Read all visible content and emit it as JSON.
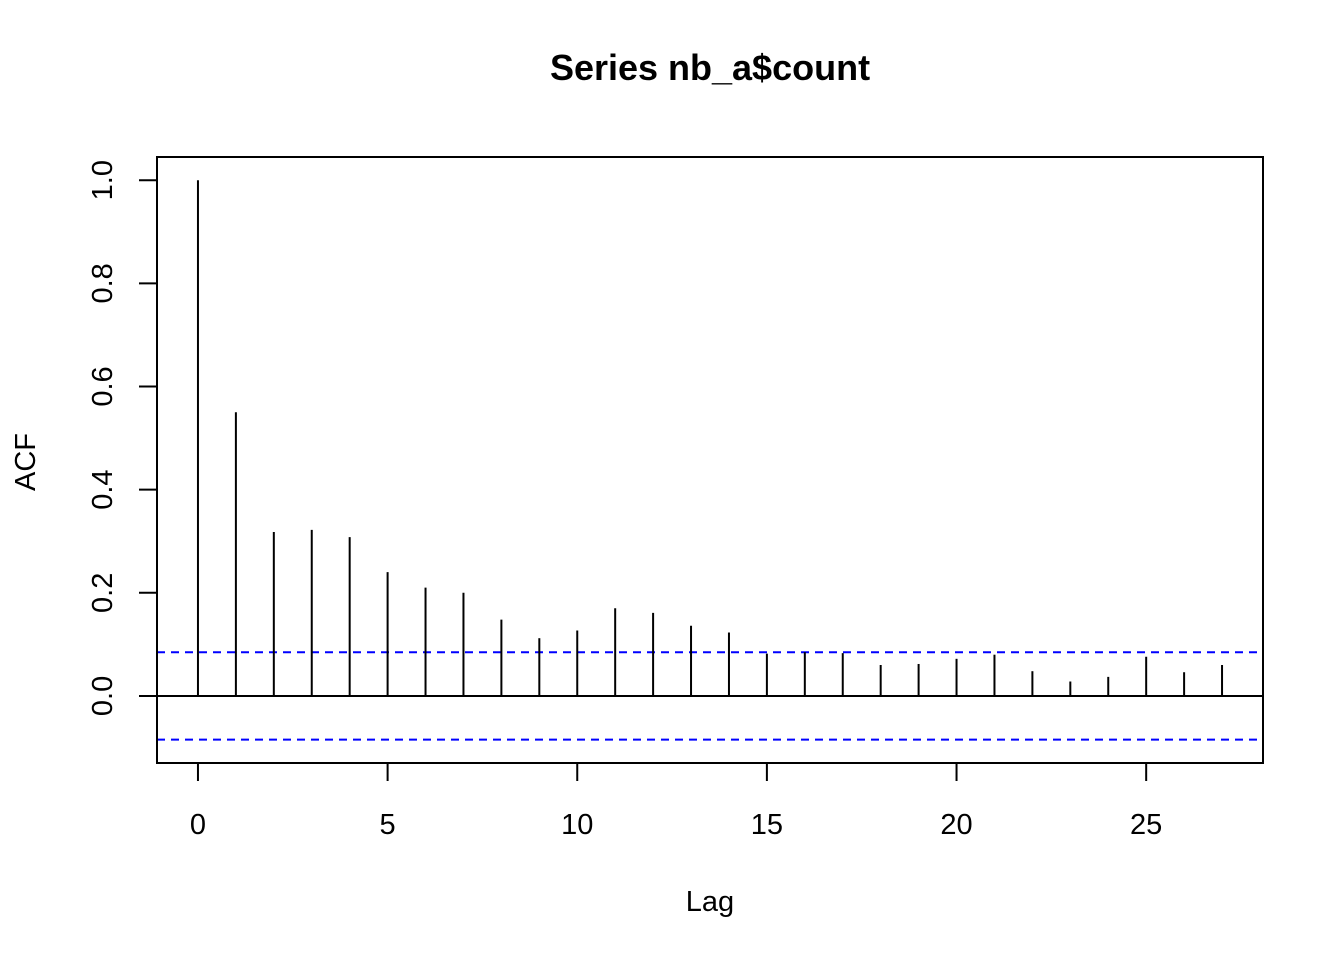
{
  "chart_data": {
    "type": "bar",
    "title": "Series  nb_a$count",
    "xlabel": "Lag",
    "ylabel": "ACF",
    "x": [
      0,
      1,
      2,
      3,
      4,
      5,
      6,
      7,
      8,
      9,
      10,
      11,
      12,
      13,
      14,
      15,
      16,
      17,
      18,
      19,
      20,
      21,
      22,
      23,
      24,
      25,
      26,
      27
    ],
    "values": [
      1.0,
      0.55,
      0.318,
      0.322,
      0.308,
      0.24,
      0.21,
      0.2,
      0.148,
      0.112,
      0.127,
      0.17,
      0.161,
      0.136,
      0.123,
      0.082,
      0.085,
      0.083,
      0.06,
      0.062,
      0.072,
      0.08,
      0.048,
      0.028,
      0.037,
      0.076,
      0.046,
      0.06
    ],
    "confidence_bound": 0.0847,
    "confidence_line_color": "#0000ff",
    "confidence_line_style": "dashed",
    "xlim": [
      -1.08,
      28.08
    ],
    "ylim": [
      -0.13,
      1.045
    ],
    "xticks": [
      0,
      5,
      10,
      15,
      20,
      25
    ],
    "yticks": [
      0.0,
      0.2,
      0.4,
      0.6,
      0.8,
      1.0
    ],
    "xtick_labels": [
      "0",
      "5",
      "10",
      "15",
      "20",
      "25"
    ],
    "ytick_labels": [
      "0.0",
      "0.2",
      "0.4",
      "0.6",
      "0.8",
      "1.0"
    ],
    "grid": false,
    "zero_line": true
  }
}
